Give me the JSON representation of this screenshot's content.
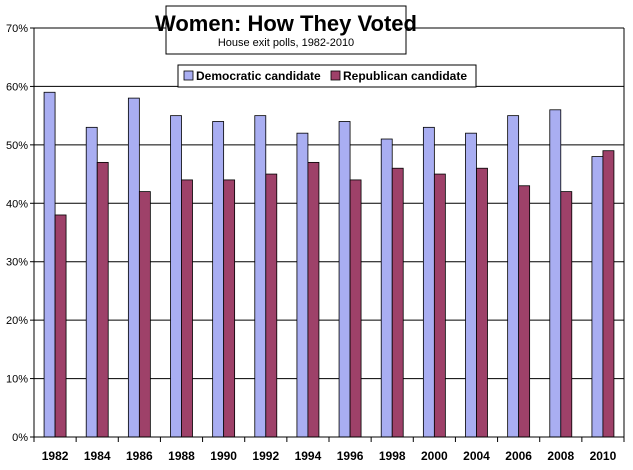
{
  "chart_data": {
    "type": "bar",
    "title": "Women: How They Voted",
    "subtitle": "House exit polls, 1982-2010",
    "categories": [
      "1982",
      "1984",
      "1986",
      "1988",
      "1990",
      "1992",
      "1994",
      "1996",
      "1998",
      "2000",
      "2004",
      "2006",
      "2008",
      "2010"
    ],
    "series": [
      {
        "name": "Democratic candidate",
        "color": "#a9aef2",
        "values": [
          59,
          53,
          58,
          55,
          54,
          55,
          52,
          54,
          51,
          53,
          52,
          55,
          56,
          48
        ]
      },
      {
        "name": "Republican candidate",
        "color": "#9e4169",
        "values": [
          38,
          47,
          42,
          44,
          44,
          45,
          47,
          44,
          46,
          45,
          46,
          43,
          42,
          49
        ]
      }
    ],
    "ylim": [
      0,
      70
    ],
    "yticks": [
      "0%",
      "10%",
      "20%",
      "30%",
      "40%",
      "50%",
      "60%",
      "70%"
    ],
    "grid": true,
    "legend": "top-center"
  }
}
